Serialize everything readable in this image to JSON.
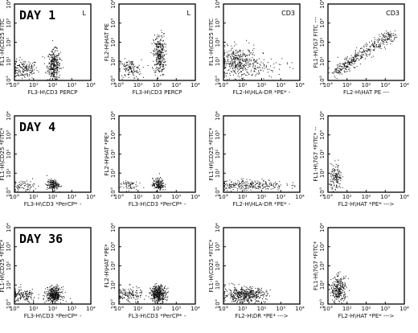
{
  "colors": {
    "dots": "#111111",
    "frame": "#000000",
    "background": "#ffffff"
  },
  "chart_data": [
    {
      "type": "scatter",
      "row": 0,
      "col": 0,
      "day_label": "DAY 1",
      "corner_label": "L",
      "xlabel": "FL3-H\\CD3 PERCP",
      "ylabel": "FL1-H\\CD25 FITC",
      "xlim": [
        0,
        4
      ],
      "ylim": [
        0,
        4
      ],
      "xscale": "log",
      "yscale": "log",
      "xticks": [
        "10°",
        "10¹",
        "10²",
        "10³",
        "10⁴"
      ],
      "yticks": [
        "10°",
        "10¹",
        "10²",
        "10³",
        "10⁴"
      ],
      "clusters": [
        {
          "cx": 0.5,
          "cy": 0.6,
          "sx": 0.35,
          "sy": 0.25,
          "n": 170
        },
        {
          "cx": 2.05,
          "cy": 0.8,
          "sx": 0.17,
          "sy": 0.4,
          "n": 330
        }
      ]
    },
    {
      "type": "scatter",
      "row": 0,
      "col": 1,
      "corner_label": "L",
      "xlabel": "FL3-H\\CD3 PERCP",
      "ylabel": "FL2-H\\HAT PE",
      "xlim": [
        0,
        4
      ],
      "ylim": [
        0,
        4
      ],
      "xscale": "log",
      "yscale": "log",
      "xticks": [
        "10°",
        "10¹",
        "10²",
        "10³",
        "10⁴"
      ],
      "yticks": [
        "10°",
        "10¹",
        "10²",
        "10³",
        "10⁴"
      ],
      "clusters": [
        {
          "cx": 0.55,
          "cy": 0.6,
          "sx": 0.3,
          "sy": 0.25,
          "n": 130
        },
        {
          "cx": 2.1,
          "cy": 1.35,
          "sx": 0.15,
          "sy": 0.55,
          "n": 320
        }
      ]
    },
    {
      "type": "scatter",
      "row": 0,
      "col": 2,
      "corner_label": "CD3",
      "xlabel": "FL2-H\\HLA-DR *PE* -",
      "ylabel": "FL1-H\\CD25 FITC",
      "xlim": [
        0,
        4
      ],
      "ylim": [
        0,
        4
      ],
      "xscale": "log",
      "yscale": "log",
      "xticks": [
        "10°",
        "10¹",
        "10²",
        "10³",
        "10⁴"
      ],
      "yticks": [
        "10°",
        "10¹",
        "10²",
        "10³",
        "10⁴"
      ],
      "clusters": [
        {
          "cx": 0.75,
          "cy": 0.95,
          "sx": 0.5,
          "sy": 0.4,
          "n": 380
        },
        {
          "cx": 1.8,
          "cy": 0.7,
          "sx": 0.8,
          "sy": 0.3,
          "n": 90
        }
      ]
    },
    {
      "type": "scatter",
      "row": 0,
      "col": 3,
      "corner_label": "CD3",
      "xlabel": "FL2-H\\HAT PE ---",
      "ylabel": "FL1-H\\7G7 FITC ---",
      "xlim": [
        0,
        4
      ],
      "ylim": [
        0,
        4
      ],
      "xscale": "log",
      "yscale": "log",
      "xticks": [
        "10°",
        "10¹",
        "10²",
        "10³",
        "10⁴"
      ],
      "yticks": [
        "10°",
        "10¹",
        "10²",
        "10³",
        "10⁴"
      ],
      "clusters": [
        {
          "diag": true,
          "x0": 0.3,
          "x1": 3.4,
          "y0": 0.4,
          "y1": 2.5,
          "spread": 0.16,
          "n": 420
        }
      ]
    },
    {
      "type": "scatter",
      "row": 1,
      "col": 0,
      "day_label": "DAY 4",
      "xlabel": "FL3-H\\CD3 *PerCP* -",
      "ylabel": "FL1-H\\CD25 *FITC*",
      "xlim": [
        0,
        4
      ],
      "ylim": [
        0,
        4
      ],
      "xscale": "log",
      "yscale": "log",
      "xticks": [
        "10°",
        "10¹",
        "10²",
        "10³",
        "10⁴"
      ],
      "yticks": [
        "10°",
        "10¹",
        "10²",
        "10³",
        "10⁴"
      ],
      "clusters": [
        {
          "cx": 0.45,
          "cy": 0.35,
          "sx": 0.3,
          "sy": 0.14,
          "n": 70
        },
        {
          "cx": 2.0,
          "cy": 0.4,
          "sx": 0.16,
          "sy": 0.14,
          "n": 170
        }
      ]
    },
    {
      "type": "scatter",
      "row": 1,
      "col": 1,
      "xlabel": "FL3-H\\CD3 *PerCP* -",
      "ylabel": "FL2-H\\HAT *PE*",
      "xlim": [
        0,
        4
      ],
      "ylim": [
        0,
        4
      ],
      "xscale": "log",
      "yscale": "log",
      "xticks": [
        "10°",
        "10¹",
        "10²",
        "10³",
        "10⁴"
      ],
      "yticks": [
        "10°",
        "10¹",
        "10²",
        "10³",
        "10⁴"
      ],
      "clusters": [
        {
          "cx": 0.45,
          "cy": 0.4,
          "sx": 0.25,
          "sy": 0.14,
          "n": 60
        },
        {
          "cx": 2.05,
          "cy": 0.42,
          "sx": 0.15,
          "sy": 0.16,
          "n": 170
        }
      ]
    },
    {
      "type": "scatter",
      "row": 1,
      "col": 2,
      "xlabel": "FL2-H\\HLA-DR *PE* -",
      "ylabel": "FL1-H\\CD25 *FITC*",
      "xlim": [
        0,
        4
      ],
      "ylim": [
        0,
        4
      ],
      "xscale": "log",
      "yscale": "log",
      "xticks": [
        "10°",
        "10¹",
        "10²",
        "10³",
        "10⁴"
      ],
      "yticks": [
        "10°",
        "10¹",
        "10²",
        "10³",
        "10⁴"
      ],
      "clusters": [
        {
          "cx": 1.4,
          "cy": 0.4,
          "sx": 0.9,
          "sy": 0.14,
          "n": 260
        }
      ]
    },
    {
      "type": "scatter",
      "row": 1,
      "col": 3,
      "xlabel": "FL2-H\\HAT *PE* --->",
      "ylabel": "FL1-H\\7G7 *FITC* --",
      "xlim": [
        0,
        4
      ],
      "ylim": [
        0,
        4
      ],
      "xscale": "log",
      "yscale": "log",
      "xticks": [
        "10°",
        "10¹",
        "10²",
        "10³",
        "10⁴"
      ],
      "yticks": [
        "10°",
        "10¹",
        "10²",
        "10³",
        "10⁴"
      ],
      "clusters": [
        {
          "cx": 0.4,
          "cy": 0.75,
          "sx": 0.15,
          "sy": 0.35,
          "n": 150
        }
      ]
    },
    {
      "type": "scatter",
      "row": 2,
      "col": 0,
      "day_label": "DAY 36",
      "xlabel": "FL3-H\\CD3 *PerCP* -",
      "ylabel": "FL1-H\\CD25 *FITC*",
      "xlim": [
        0,
        4
      ],
      "ylim": [
        0,
        4
      ],
      "xscale": "log",
      "yscale": "log",
      "xticks": [
        "10°",
        "10¹",
        "10²",
        "10³",
        "10⁴"
      ],
      "yticks": [
        "10°",
        "10¹",
        "10²",
        "10³",
        "10⁴"
      ],
      "clusters": [
        {
          "cx": 0.45,
          "cy": 0.45,
          "sx": 0.35,
          "sy": 0.18,
          "n": 140
        },
        {
          "cx": 2.05,
          "cy": 0.5,
          "sx": 0.2,
          "sy": 0.2,
          "n": 420
        }
      ]
    },
    {
      "type": "scatter",
      "row": 2,
      "col": 1,
      "xlabel": "FL3-H\\CD3 *PerCP* -",
      "ylabel": "FL2-H\\HAT *PE*",
      "xlim": [
        0,
        4
      ],
      "ylim": [
        0,
        4
      ],
      "xscale": "log",
      "yscale": "log",
      "xticks": [
        "10°",
        "10¹",
        "10²",
        "10³",
        "10⁴"
      ],
      "yticks": [
        "10°",
        "10¹",
        "10²",
        "10³",
        "10⁴"
      ],
      "clusters": [
        {
          "cx": 0.5,
          "cy": 0.5,
          "sx": 0.35,
          "sy": 0.2,
          "n": 140
        },
        {
          "cx": 2.05,
          "cy": 0.55,
          "sx": 0.2,
          "sy": 0.22,
          "n": 420
        }
      ]
    },
    {
      "type": "scatter",
      "row": 2,
      "col": 2,
      "xlabel": "FL2-H\\DR *PE* --->",
      "ylabel": "FL1-H\\CD25 *FITC*",
      "xlim": [
        0,
        4
      ],
      "ylim": [
        0,
        4
      ],
      "xscale": "log",
      "yscale": "log",
      "xticks": [
        "10°",
        "10¹",
        "10²",
        "10³",
        "10⁴"
      ],
      "yticks": [
        "10°",
        "10¹",
        "10²",
        "10³",
        "10⁴"
      ],
      "clusters": [
        {
          "cx": 1.1,
          "cy": 0.5,
          "sx": 0.55,
          "sy": 0.2,
          "n": 480
        }
      ]
    },
    {
      "type": "scatter",
      "row": 2,
      "col": 3,
      "xlabel": "FL2-H\\HAT *PE* --->",
      "ylabel": "FL1-H\\7G7 *FITC*",
      "xlim": [
        0,
        4
      ],
      "ylim": [
        0,
        4
      ],
      "xscale": "log",
      "yscale": "log",
      "xticks": [
        "10°",
        "10¹",
        "10²",
        "10³",
        "10⁴"
      ],
      "yticks": [
        "10°",
        "10¹",
        "10²",
        "10³",
        "10⁴"
      ],
      "clusters": [
        {
          "cx": 0.55,
          "cy": 0.75,
          "sx": 0.2,
          "sy": 0.35,
          "n": 300
        }
      ]
    }
  ]
}
